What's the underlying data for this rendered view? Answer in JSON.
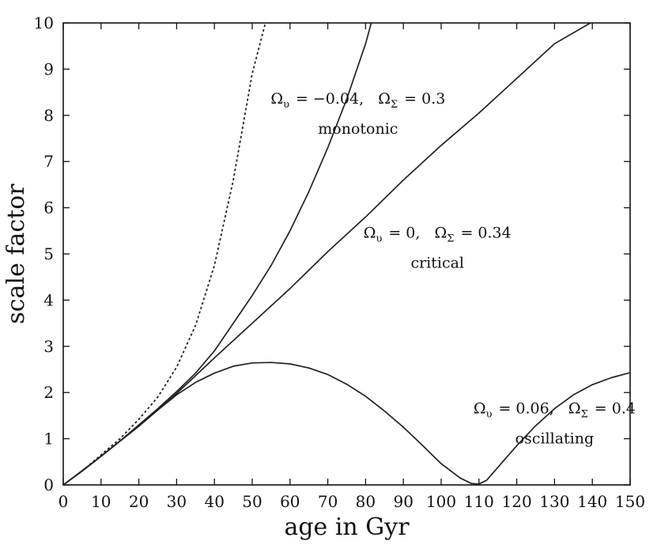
{
  "chart_data": {
    "type": "line",
    "xlabel": "age in Gyr",
    "ylabel": "scale factor",
    "xlim": [
      0,
      150
    ],
    "ylim": [
      0,
      10
    ],
    "xticks": [
      0,
      10,
      20,
      30,
      40,
      50,
      60,
      70,
      80,
      90,
      100,
      110,
      120,
      130,
      140,
      150
    ],
    "yticks": [
      0,
      1,
      2,
      3,
      4,
      5,
      6,
      7,
      8,
      9,
      10
    ],
    "grid": false,
    "legend": "none",
    "series": [
      {
        "style": "dotted",
        "x": [
          0,
          5,
          10,
          15,
          20,
          25,
          30,
          35,
          40,
          45,
          50,
          53.5
        ],
        "y": [
          0,
          0.3,
          0.65,
          1.0,
          1.42,
          1.9,
          2.55,
          3.45,
          4.75,
          6.6,
          8.9,
          10
        ]
      },
      {
        "style": "solid",
        "x": [
          0,
          5,
          10,
          15,
          20,
          25,
          30,
          35,
          40,
          45,
          50,
          55,
          60,
          65,
          70,
          75,
          80,
          81.5
        ],
        "y": [
          0,
          0.3,
          0.62,
          0.95,
          1.3,
          1.65,
          2.02,
          2.42,
          2.9,
          3.5,
          4.1,
          4.75,
          5.5,
          6.35,
          7.3,
          8.35,
          9.55,
          10
        ]
      },
      {
        "style": "solid",
        "x": [
          0,
          10,
          20,
          25,
          30,
          40,
          50,
          60,
          70,
          80,
          90,
          100,
          110,
          120,
          130,
          139.5
        ],
        "y": [
          0,
          0.62,
          1.27,
          1.62,
          1.98,
          2.75,
          3.5,
          4.25,
          5.05,
          5.8,
          6.6,
          7.35,
          8.05,
          8.8,
          9.55,
          10
        ]
      },
      {
        "style": "solid",
        "x": [
          0,
          5,
          10,
          15,
          20,
          25,
          30,
          35,
          40,
          45,
          50,
          55,
          60,
          65,
          70,
          75,
          80,
          85,
          90,
          95,
          100,
          105,
          108,
          110,
          112,
          115,
          120,
          125,
          130,
          135,
          140,
          145,
          150
        ],
        "y": [
          0,
          0.3,
          0.62,
          0.95,
          1.28,
          1.62,
          1.95,
          2.22,
          2.42,
          2.57,
          2.64,
          2.65,
          2.62,
          2.53,
          2.39,
          2.18,
          1.92,
          1.6,
          1.25,
          0.86,
          0.46,
          0.15,
          0.03,
          0.02,
          0.1,
          0.38,
          0.85,
          1.28,
          1.65,
          1.95,
          2.17,
          2.32,
          2.43
        ]
      }
    ],
    "annotations": [
      {
        "lines": [
          "Ω_υ = −0.04,   Ω_Σ = 0.3",
          "monotonic"
        ],
        "x": 78,
        "y": 8.25
      },
      {
        "lines": [
          "Ω_υ = 0,   Ω_Σ = 0.34",
          "critical"
        ],
        "x": 99,
        "y": 5.35
      },
      {
        "lines": [
          "Ω_υ = 0.06,   Ω_Σ = 0.4",
          "oscillating"
        ],
        "x": 130,
        "y": 1.55
      }
    ]
  }
}
